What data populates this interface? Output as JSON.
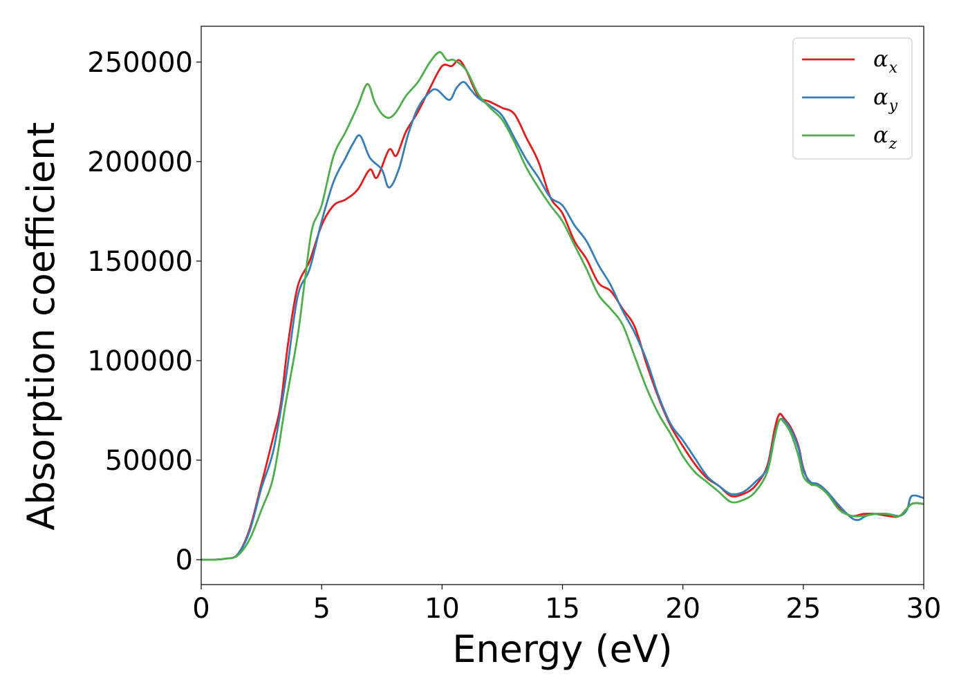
{
  "chart_data": {
    "type": "line",
    "title": "",
    "xlabel": "Energy (eV)",
    "ylabel": "Absorption coefficient",
    "xlim": [
      0,
      30
    ],
    "ylim": [
      -12500,
      268000
    ],
    "xticks": [
      0,
      5,
      10,
      15,
      20,
      25,
      30
    ],
    "yticks": [
      0,
      50000,
      100000,
      150000,
      200000,
      250000
    ],
    "grid": false,
    "legend_position": "top-right",
    "series": [
      {
        "name": "α_x",
        "label_main": "α",
        "label_sub": "x",
        "color": "#e41a1c",
        "x": [
          0,
          0.5,
          1.0,
          1.5,
          2.0,
          2.5,
          3.0,
          3.3,
          3.6,
          4.0,
          4.5,
          5.0,
          5.5,
          6.0,
          6.5,
          7.0,
          7.3,
          7.8,
          8.1,
          8.5,
          9.0,
          9.5,
          10.0,
          10.4,
          10.7,
          11.0,
          11.5,
          12.0,
          12.5,
          13.0,
          13.5,
          14.0,
          14.5,
          15.0,
          15.5,
          16.0,
          16.5,
          17.0,
          17.5,
          18.0,
          18.5,
          19.0,
          19.5,
          20.0,
          20.5,
          21.0,
          21.5,
          22.0,
          22.5,
          23.0,
          23.5,
          23.8,
          24.0,
          24.2,
          24.5,
          24.8,
          25.0,
          25.3,
          25.6,
          26.0,
          26.5,
          27.0,
          27.5,
          28.0,
          28.5,
          29.0,
          29.5,
          30.0
        ],
        "y": [
          0,
          0,
          500,
          2500,
          15000,
          38000,
          62000,
          78000,
          108000,
          137000,
          150000,
          168000,
          178000,
          181000,
          186000,
          196000,
          192000,
          206000,
          203000,
          215000,
          225000,
          237000,
          248000,
          248000,
          251000,
          246000,
          233000,
          230000,
          227000,
          224000,
          212000,
          200000,
          182000,
          174000,
          160000,
          151000,
          139000,
          135000,
          126000,
          117000,
          98000,
          81000,
          67000,
          57000,
          48000,
          41000,
          37000,
          32000,
          33000,
          37000,
          47000,
          65000,
          73000,
          71000,
          66000,
          57000,
          46000,
          38000,
          38000,
          34000,
          26000,
          22000,
          23000,
          23000,
          22000,
          22000,
          28000,
          28000
        ]
      },
      {
        "name": "α_y",
        "label_main": "α",
        "label_sub": "y",
        "color": "#377eb8",
        "x": [
          0,
          0.5,
          1.0,
          1.5,
          2.0,
          2.5,
          3.0,
          3.5,
          4.0,
          4.5,
          5.0,
          5.5,
          6.0,
          6.3,
          6.6,
          7.0,
          7.5,
          7.8,
          8.2,
          8.6,
          9.0,
          9.5,
          9.8,
          10.3,
          10.6,
          10.9,
          11.2,
          11.5,
          12.0,
          12.5,
          13.0,
          13.5,
          14.0,
          14.5,
          15.0,
          15.5,
          16.0,
          16.5,
          17.0,
          17.5,
          18.0,
          18.5,
          19.0,
          19.5,
          20.0,
          20.5,
          21.0,
          21.5,
          22.0,
          22.5,
          23.0,
          23.5,
          23.8,
          24.0,
          24.2,
          24.5,
          24.8,
          25.0,
          25.3,
          25.6,
          26.0,
          26.5,
          27.0,
          27.3,
          27.6,
          28.0,
          28.5,
          29.0,
          29.3,
          29.5,
          30.0
        ],
        "y": [
          0,
          0,
          500,
          2500,
          14000,
          36000,
          55000,
          90000,
          132000,
          146000,
          170000,
          190000,
          202000,
          209000,
          213000,
          202000,
          196000,
          187000,
          196000,
          214000,
          227000,
          235000,
          236000,
          231000,
          237000,
          240000,
          236000,
          232000,
          228000,
          223000,
          212000,
          201000,
          192000,
          182000,
          178000,
          168000,
          160000,
          148000,
          138000,
          125000,
          114000,
          100000,
          82000,
          68000,
          60000,
          51000,
          42000,
          37000,
          33000,
          34000,
          39000,
          46000,
          62000,
          70000,
          70000,
          65000,
          56000,
          45000,
          39000,
          38000,
          34000,
          27000,
          21000,
          20000,
          22000,
          23000,
          23000,
          22000,
          25000,
          32000,
          31000
        ]
      },
      {
        "name": "α_z",
        "label_main": "α",
        "label_sub": "z",
        "color": "#4daf4a",
        "x": [
          0,
          0.5,
          1.0,
          1.5,
          2.0,
          2.5,
          3.0,
          3.5,
          4.0,
          4.3,
          4.6,
          5.0,
          5.5,
          6.0,
          6.5,
          6.9,
          7.2,
          7.5,
          7.8,
          8.1,
          8.5,
          9.0,
          9.5,
          9.9,
          10.2,
          10.5,
          11.0,
          11.5,
          12.0,
          12.5,
          13.0,
          13.5,
          14.0,
          14.5,
          15.0,
          15.5,
          16.0,
          16.5,
          17.0,
          17.5,
          18.0,
          18.5,
          19.0,
          19.5,
          20.0,
          20.5,
          21.0,
          21.5,
          22.0,
          22.5,
          23.0,
          23.5,
          23.8,
          24.0,
          24.2,
          24.5,
          24.8,
          25.0,
          25.3,
          25.6,
          26.0,
          26.5,
          27.0,
          27.5,
          28.0,
          28.5,
          29.0,
          29.5,
          30.0
        ],
        "y": [
          0,
          0,
          500,
          2000,
          10000,
          25000,
          42000,
          78000,
          112000,
          140000,
          166000,
          178000,
          203000,
          215000,
          228000,
          239000,
          230000,
          224000,
          222000,
          225000,
          233000,
          240000,
          250000,
          255000,
          251000,
          251000,
          246000,
          234000,
          227000,
          221000,
          210000,
          197000,
          187000,
          178000,
          170000,
          158000,
          146000,
          133000,
          126000,
          118000,
          102000,
          86000,
          73000,
          63000,
          52000,
          44000,
          39000,
          34000,
          29000,
          30000,
          34000,
          44000,
          61000,
          70000,
          69000,
          63000,
          52000,
          42000,
          38000,
          37000,
          33000,
          25000,
          22000,
          22000,
          23000,
          23000,
          22000,
          28000,
          28000
        ]
      }
    ]
  }
}
